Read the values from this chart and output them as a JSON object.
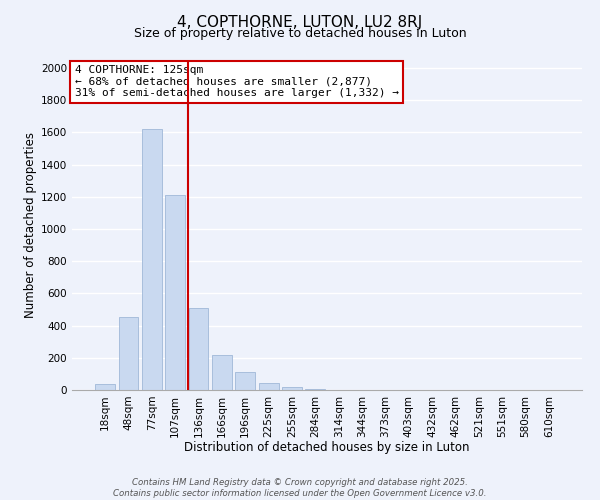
{
  "title": "4, COPTHORNE, LUTON, LU2 8RJ",
  "subtitle": "Size of property relative to detached houses in Luton",
  "xlabel": "Distribution of detached houses by size in Luton",
  "ylabel": "Number of detached properties",
  "bar_labels": [
    "18sqm",
    "48sqm",
    "77sqm",
    "107sqm",
    "136sqm",
    "166sqm",
    "196sqm",
    "225sqm",
    "255sqm",
    "284sqm",
    "314sqm",
    "344sqm",
    "373sqm",
    "403sqm",
    "432sqm",
    "462sqm",
    "521sqm",
    "551sqm",
    "580sqm",
    "610sqm"
  ],
  "bar_values": [
    35,
    455,
    1620,
    1210,
    510,
    215,
    110,
    45,
    20,
    5,
    0,
    0,
    0,
    0,
    0,
    0,
    0,
    0,
    0,
    0
  ],
  "bar_color": "#c9d9f0",
  "bar_edge_color": "#a0b8d8",
  "vline_color": "#cc0000",
  "vline_x_index": 3.57,
  "annotation_line1": "4 COPTHORNE: 125sqm",
  "annotation_line2": "← 68% of detached houses are smaller (2,877)",
  "annotation_line3": "31% of semi-detached houses are larger (1,332) →",
  "annotation_box_color": "white",
  "annotation_box_edge": "#cc0000",
  "ylim": [
    0,
    2050
  ],
  "yticks": [
    0,
    200,
    400,
    600,
    800,
    1000,
    1200,
    1400,
    1600,
    1800,
    2000
  ],
  "bg_color": "#eef2fb",
  "grid_color": "#ffffff",
  "footer_line1": "Contains HM Land Registry data © Crown copyright and database right 2025.",
  "footer_line2": "Contains public sector information licensed under the Open Government Licence v3.0.",
  "title_fontsize": 11,
  "axis_label_fontsize": 8.5,
  "tick_fontsize": 7.5,
  "annot_fontsize": 8
}
